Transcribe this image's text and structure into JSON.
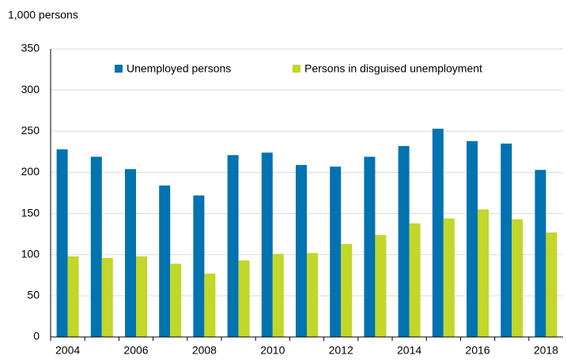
{
  "chart_data": {
    "type": "bar",
    "y_label": "1,000 persons",
    "categories": [
      "2004",
      null,
      "2006",
      null,
      "2008",
      null,
      "2010",
      null,
      "2012",
      null,
      "2014",
      null,
      "2016",
      null,
      "2018"
    ],
    "series": [
      {
        "name": "Unemployed persons",
        "color": "#0073b0",
        "values": [
          228,
          219,
          204,
          184,
          172,
          221,
          224,
          209,
          207,
          219,
          232,
          253,
          238,
          235,
          203
        ]
      },
      {
        "name": "Persons in disguised unemployment",
        "color": "#c3d62a",
        "values": [
          98,
          96,
          98,
          89,
          77,
          93,
          101,
          102,
          113,
          124,
          138,
          144,
          155,
          143,
          127
        ]
      }
    ],
    "ylim": [
      0,
      350
    ],
    "yticks": [
      0,
      50,
      100,
      150,
      200,
      250,
      300,
      350
    ],
    "grid": true,
    "legend": "top"
  }
}
